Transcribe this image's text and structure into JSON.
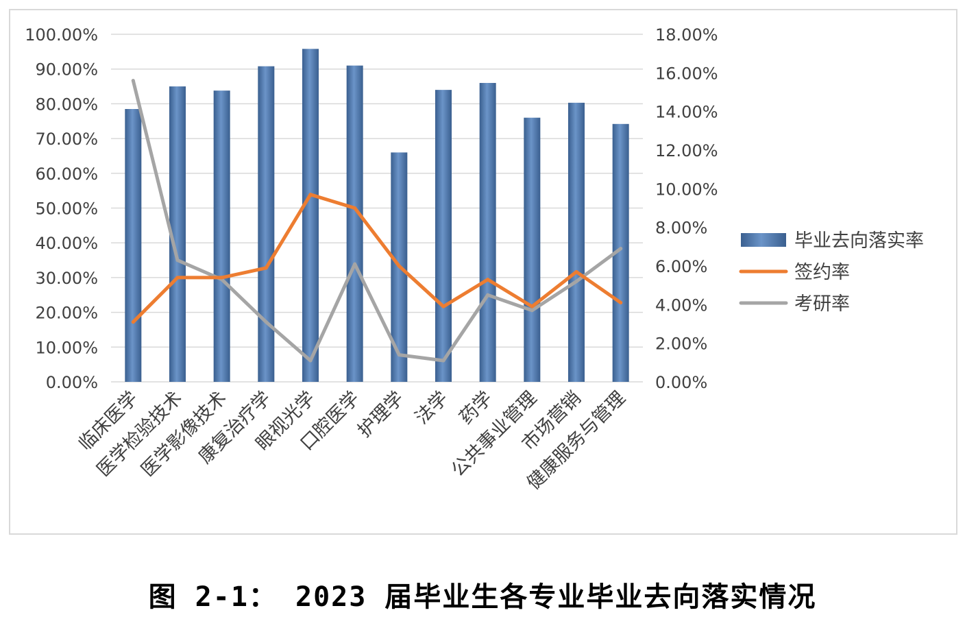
{
  "caption": "图 2-1： 2023 届毕业生各专业毕业去向落实情况",
  "colors": {
    "bar": "#4f7ab0",
    "bar_dark": "#3a5f8f",
    "bar_light": "#6b94c8",
    "sign": "#ed7d31",
    "grad": "#a5a5a5",
    "grid": "#d9d9d9",
    "text": "#404040"
  },
  "chart_data": {
    "type": "bar",
    "title": "",
    "categories": [
      "临床医学",
      "医学检验技术",
      "医学影像技术",
      "康复治疗学",
      "眼视光学",
      "口腔医学",
      "护理学",
      "法学",
      "药学",
      "公共事业管理",
      "市场营销",
      "健康服务与管理"
    ],
    "y_left": {
      "min": 0,
      "max": 100,
      "step": 10,
      "ticks": [
        "0.00%",
        "10.00%",
        "20.00%",
        "30.00%",
        "40.00%",
        "50.00%",
        "60.00%",
        "70.00%",
        "80.00%",
        "90.00%",
        "100.00%"
      ]
    },
    "y_right": {
      "min": 0,
      "max": 18,
      "step": 2,
      "ticks": [
        "0.00%",
        "2.00%",
        "4.00%",
        "6.00%",
        "8.00%",
        "10.00%",
        "12.00%",
        "14.00%",
        "16.00%",
        "18.00%"
      ]
    },
    "series": [
      {
        "name": "毕业去向落实率",
        "type": "bar",
        "axis": "left",
        "values": [
          78.5,
          85.0,
          83.8,
          90.8,
          95.8,
          91.0,
          66.0,
          84.0,
          86.0,
          76.0,
          80.3,
          74.2
        ]
      },
      {
        "name": "签约率",
        "type": "line",
        "axis": "right",
        "values": [
          3.1,
          5.4,
          5.4,
          5.9,
          9.7,
          9.0,
          6.0,
          3.9,
          5.3,
          3.9,
          5.7,
          4.1
        ]
      },
      {
        "name": "考研率",
        "type": "line",
        "axis": "right",
        "values": [
          15.6,
          6.3,
          5.3,
          3.1,
          1.1,
          6.1,
          1.4,
          1.1,
          4.5,
          3.7,
          5.2,
          6.9
        ]
      }
    ],
    "grid": true,
    "legend_position": "right"
  }
}
